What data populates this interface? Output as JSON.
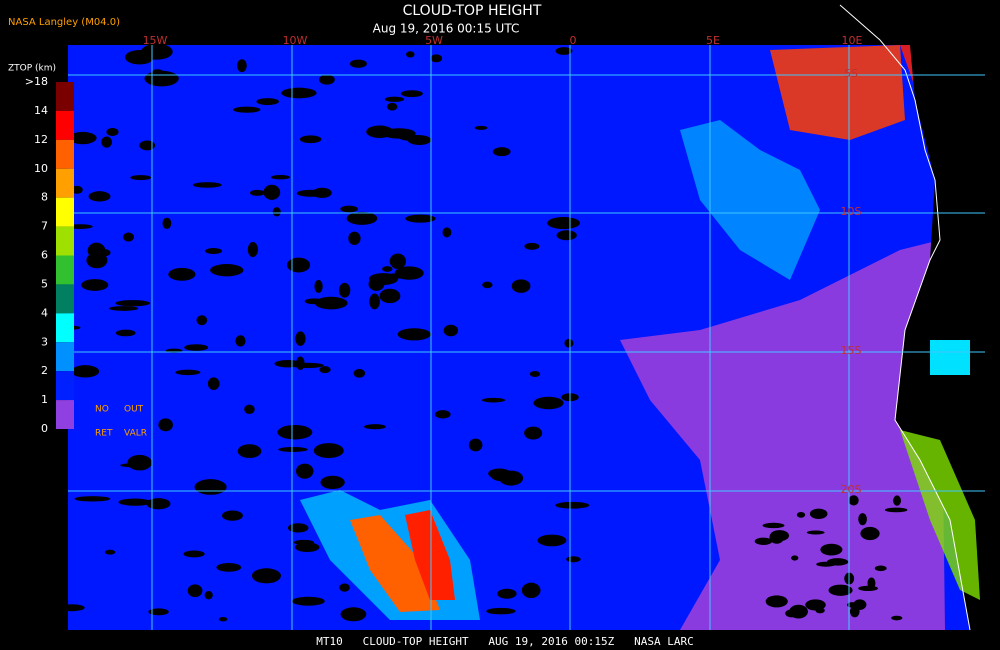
{
  "header": {
    "source": "NASA Langley (M04.0)",
    "title": "CLOUD-TOP HEIGHT",
    "subtitle": "Aug 19, 2016 00:15 UTC"
  },
  "legend": {
    "title": "ZTOP (km)",
    "labels": [
      ">18",
      "14",
      "12",
      "10",
      "8",
      "7",
      "6",
      "5",
      "4",
      "3",
      "2",
      "1",
      "0"
    ],
    "colors": [
      "#7a0000",
      "#ff0000",
      "#ff6000",
      "#ffa000",
      "#ffff00",
      "#a0e000",
      "#30c030",
      "#008060",
      "#00ffff",
      "#0090ff",
      "#0020ff",
      "#9040e0"
    ],
    "notes": [
      "NO",
      "OUT",
      "RET",
      "VALR"
    ]
  },
  "map": {
    "longitudes": [
      "15W",
      "10W",
      "5W",
      "0",
      "5E",
      "10E"
    ],
    "latitudes": [
      "5S",
      "10S",
      "15S",
      "20S"
    ]
  },
  "footer": "MT10   CLOUD-TOP HEIGHT   AUG 19, 2016 00:15Z   NASA LARC"
}
